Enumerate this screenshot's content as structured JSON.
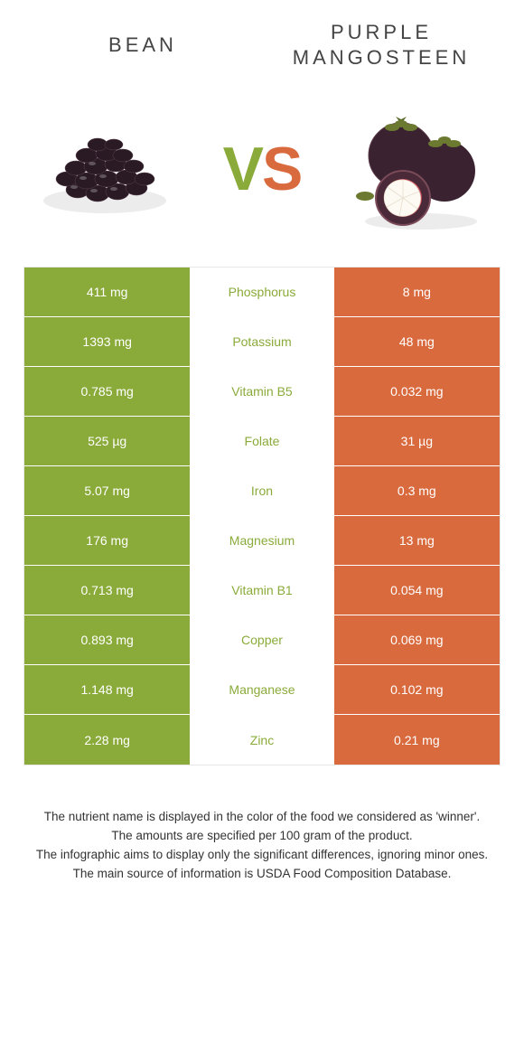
{
  "colors": {
    "left": "#8aab3a",
    "right": "#d96a3e",
    "bg": "#ffffff",
    "text": "#333333"
  },
  "titles": {
    "left": "BEAN",
    "right_line1": "PURPLE",
    "right_line2": "MANGOSTEEN"
  },
  "vs": {
    "v": "V",
    "s": "S"
  },
  "rows": [
    {
      "left": "411 mg",
      "label": "Phosphorus",
      "right": "8 mg",
      "winner": "left"
    },
    {
      "left": "1393 mg",
      "label": "Potassium",
      "right": "48 mg",
      "winner": "left"
    },
    {
      "left": "0.785 mg",
      "label": "Vitamin B5",
      "right": "0.032 mg",
      "winner": "left"
    },
    {
      "left": "525 µg",
      "label": "Folate",
      "right": "31 µg",
      "winner": "left"
    },
    {
      "left": "5.07 mg",
      "label": "Iron",
      "right": "0.3 mg",
      "winner": "left"
    },
    {
      "left": "176 mg",
      "label": "Magnesium",
      "right": "13 mg",
      "winner": "left"
    },
    {
      "left": "0.713 mg",
      "label": "Vitamin B1",
      "right": "0.054 mg",
      "winner": "left"
    },
    {
      "left": "0.893 mg",
      "label": "Copper",
      "right": "0.069 mg",
      "winner": "left"
    },
    {
      "left": "1.148 mg",
      "label": "Manganese",
      "right": "0.102 mg",
      "winner": "left"
    },
    {
      "left": "2.28 mg",
      "label": "Zinc",
      "right": "0.21 mg",
      "winner": "left"
    }
  ],
  "footer": [
    "The nutrient name is displayed in the color of the food we considered as 'winner'.",
    "The amounts are specified per 100 gram of the product.",
    "The infographic aims to display only the significant differences, ignoring minor ones.",
    "The main source of information is USDA Food Composition Database."
  ]
}
